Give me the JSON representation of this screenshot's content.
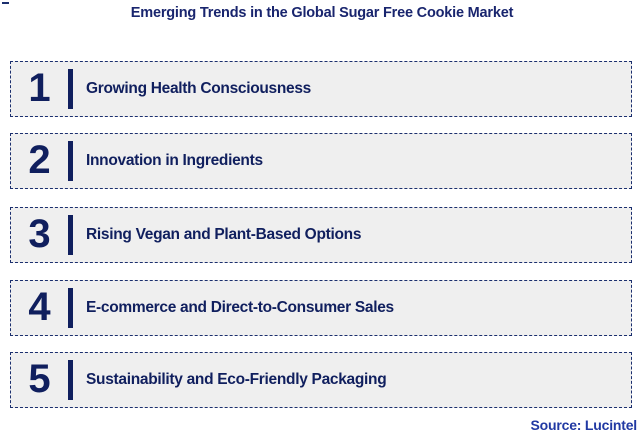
{
  "title": "Emerging Trends in the Global Sugar Free Cookie Market",
  "source": "Source: Lucintel",
  "trends": [
    {
      "number": "1",
      "label": "Growing Health Consciousness"
    },
    {
      "number": "2",
      "label": "Innovation in Ingredients"
    },
    {
      "number": "3",
      "label": "Rising Vegan and Plant-Based Options"
    },
    {
      "number": "4",
      "label": "E-commerce and Direct-to-Consumer Sales"
    },
    {
      "number": "5",
      "label": "Sustainability and Eco-Friendly Packaging"
    }
  ],
  "colors": {
    "navy_content": "#101f5e",
    "navy_title": "#19256e",
    "source_blue": "#2139a3",
    "box_background": "#efefef",
    "box_border": "#1b2f6e",
    "page_background": "#ffffff"
  }
}
